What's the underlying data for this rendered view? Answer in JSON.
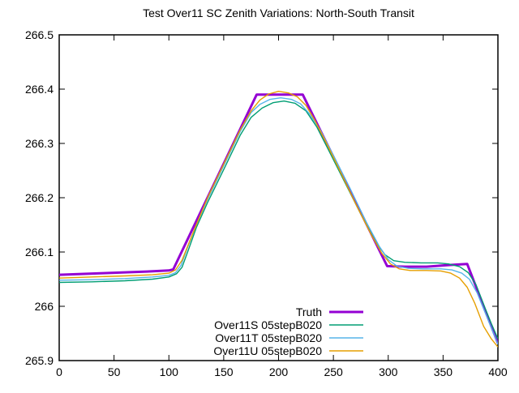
{
  "chart_data": {
    "type": "line",
    "title": "Test Over11 SC Zenith Variations: North-South Transit",
    "xlabel": "",
    "ylabel": "",
    "xlim": [
      0,
      400
    ],
    "ylim": [
      265.9,
      266.5
    ],
    "xticks": [
      0,
      50,
      100,
      150,
      200,
      250,
      300,
      350,
      400
    ],
    "xtick_labels": [
      "0",
      "50",
      "100",
      "150",
      "200",
      "250",
      "300",
      "350",
      "400"
    ],
    "yticks": [
      265.9,
      266.0,
      266.1,
      266.2,
      266.3,
      266.4,
      266.5
    ],
    "ytick_labels": [
      "265.9",
      "266",
      "266.1",
      "266.2",
      "266.3",
      "266.4",
      "266.5"
    ],
    "grid": false,
    "background_color": "#ffffff",
    "axis_color": "#000000",
    "legend_position": "inside-bottom-center-right",
    "series": [
      {
        "name": "Truth",
        "color": "#9400d3",
        "line_width": 3,
        "points": [
          [
            0,
            266.058
          ],
          [
            40,
            266.061
          ],
          [
            80,
            266.064
          ],
          [
            100,
            266.066
          ],
          [
            104,
            266.068
          ],
          [
            180,
            266.39
          ],
          [
            222,
            266.39
          ],
          [
            299,
            266.074
          ],
          [
            315,
            266.073
          ],
          [
            335,
            266.073
          ],
          [
            355,
            266.076
          ],
          [
            372,
            266.078
          ],
          [
            400,
            265.932
          ]
        ]
      },
      {
        "name": "Over11S 05stepB020",
        "color": "#009e73",
        "line_width": 1.4,
        "points": [
          [
            0,
            266.044
          ],
          [
            30,
            266.045
          ],
          [
            60,
            266.047
          ],
          [
            85,
            266.05
          ],
          [
            100,
            266.054
          ],
          [
            107,
            266.06
          ],
          [
            112,
            266.072
          ],
          [
            118,
            266.105
          ],
          [
            125,
            266.145
          ],
          [
            135,
            266.19
          ],
          [
            150,
            266.252
          ],
          [
            165,
            266.315
          ],
          [
            175,
            266.348
          ],
          [
            185,
            266.365
          ],
          [
            195,
            266.375
          ],
          [
            205,
            266.378
          ],
          [
            215,
            266.374
          ],
          [
            225,
            266.36
          ],
          [
            235,
            266.33
          ],
          [
            245,
            266.29
          ],
          [
            260,
            266.23
          ],
          [
            275,
            266.17
          ],
          [
            288,
            266.12
          ],
          [
            297,
            266.095
          ],
          [
            305,
            266.084
          ],
          [
            315,
            266.081
          ],
          [
            330,
            266.08
          ],
          [
            345,
            266.08
          ],
          [
            355,
            266.078
          ],
          [
            365,
            266.073
          ],
          [
            373,
            266.062
          ],
          [
            380,
            266.04
          ],
          [
            388,
            265.998
          ],
          [
            394,
            265.968
          ],
          [
            400,
            265.94
          ]
        ]
      },
      {
        "name": "Over11T 05stepB020",
        "color": "#56b4e9",
        "line_width": 1.4,
        "points": [
          [
            0,
            266.048
          ],
          [
            30,
            266.049
          ],
          [
            60,
            266.051
          ],
          [
            85,
            266.054
          ],
          [
            100,
            266.057
          ],
          [
            106,
            266.062
          ],
          [
            111,
            266.075
          ],
          [
            117,
            266.108
          ],
          [
            125,
            266.15
          ],
          [
            135,
            266.196
          ],
          [
            150,
            266.259
          ],
          [
            165,
            266.322
          ],
          [
            175,
            266.357
          ],
          [
            183,
            266.372
          ],
          [
            192,
            266.381
          ],
          [
            202,
            266.384
          ],
          [
            212,
            266.381
          ],
          [
            220,
            266.373
          ],
          [
            228,
            266.355
          ],
          [
            238,
            266.325
          ],
          [
            250,
            266.278
          ],
          [
            265,
            266.218
          ],
          [
            280,
            266.155
          ],
          [
            292,
            266.11
          ],
          [
            300,
            266.086
          ],
          [
            308,
            266.074
          ],
          [
            318,
            266.07
          ],
          [
            332,
            266.069
          ],
          [
            348,
            266.069
          ],
          [
            358,
            266.067
          ],
          [
            367,
            266.061
          ],
          [
            374,
            266.05
          ],
          [
            381,
            266.025
          ],
          [
            389,
            265.985
          ],
          [
            400,
            265.93
          ]
        ]
      },
      {
        "name": "Over11U 05stepB020",
        "color": "#e69f00",
        "line_width": 1.4,
        "points": [
          [
            0,
            266.052
          ],
          [
            30,
            266.054
          ],
          [
            60,
            266.056
          ],
          [
            85,
            266.058
          ],
          [
            100,
            266.061
          ],
          [
            106,
            266.067
          ],
          [
            112,
            266.085
          ],
          [
            118,
            266.115
          ],
          [
            126,
            266.155
          ],
          [
            136,
            266.203
          ],
          [
            150,
            266.262
          ],
          [
            165,
            266.325
          ],
          [
            175,
            266.36
          ],
          [
            183,
            266.38
          ],
          [
            191,
            266.391
          ],
          [
            200,
            266.396
          ],
          [
            209,
            266.393
          ],
          [
            217,
            266.386
          ],
          [
            225,
            266.37
          ],
          [
            233,
            266.343
          ],
          [
            243,
            266.303
          ],
          [
            257,
            266.245
          ],
          [
            272,
            266.182
          ],
          [
            285,
            266.13
          ],
          [
            294,
            266.098
          ],
          [
            302,
            266.078
          ],
          [
            310,
            266.069
          ],
          [
            320,
            266.066
          ],
          [
            335,
            266.066
          ],
          [
            348,
            266.065
          ],
          [
            357,
            266.061
          ],
          [
            365,
            266.052
          ],
          [
            372,
            266.035
          ],
          [
            379,
            266.005
          ],
          [
            387,
            265.963
          ],
          [
            394,
            265.94
          ],
          [
            400,
            265.925
          ]
        ]
      }
    ]
  }
}
